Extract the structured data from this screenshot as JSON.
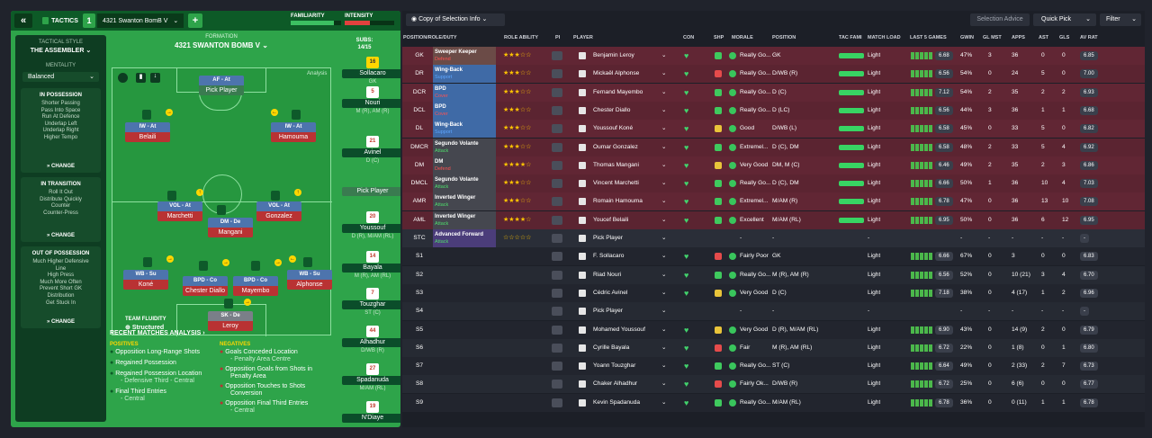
{
  "topbar": {
    "back": "«",
    "tactics": "TACTICS",
    "slot": "1",
    "tactic_name": "4321 Swanton BomB V",
    "add": "+",
    "familiarity": "FAMILIARITY",
    "intensity": "INTENSITY"
  },
  "side": {
    "style_label": "TACTICAL STYLE",
    "style": "THE ASSEMBLER",
    "mentality_label": "MENTALITY",
    "mentality": "Balanced",
    "in_possession": {
      "title": "IN POSSESSION",
      "items": [
        "Shorter Passing",
        "Pass Into Space",
        "Run At Defence",
        "Underlap Left",
        "Underlap Right",
        "Higher Tempo"
      ],
      "change": "CHANGE"
    },
    "in_transition": {
      "title": "IN TRANSITION",
      "items": [
        "Roll It Out",
        "Distribute Quickly",
        "Counter",
        "Counter-Press"
      ],
      "change": "CHANGE"
    },
    "out_possession": {
      "title": "OUT OF POSSESSION",
      "items": [
        "Much Higher Defensive",
        "Line",
        "High Press",
        "Much More Often",
        "Prevent Short GK",
        "Distribution",
        "Get Stuck In"
      ],
      "change": "CHANGE"
    }
  },
  "formation": {
    "label": "FORMATION",
    "name": "4321 SWANTON BOMB V",
    "subs_label": "SUBS:",
    "subs": "14/15",
    "analysis": "Analysis",
    "fluidity_label": "TEAM FLUIDITY",
    "fluidity": "Structured",
    "pick": "Pick Player"
  },
  "pitch_players": [
    {
      "role": "AF - At",
      "name": "Pick Player"
    },
    {
      "role": "IW - At",
      "name": "Belaili"
    },
    {
      "role": "IW - At",
      "name": "Hamouma"
    },
    {
      "role": "VOL - At",
      "name": "Marchetti"
    },
    {
      "role": "DM - De",
      "name": "Mangani"
    },
    {
      "role": "VOL - At",
      "name": "Gonzalez"
    },
    {
      "role": "WB - Su",
      "name": "Koné"
    },
    {
      "role": "BPD - Co",
      "name": "Chester Diallo"
    },
    {
      "role": "BPD - Co",
      "name": "Mayembo"
    },
    {
      "role": "WB - Su",
      "name": "Alphonse"
    },
    {
      "role": "SK - De",
      "name": "Leroy"
    }
  ],
  "subs": [
    {
      "num": "16",
      "name": "Sollacaro",
      "pos": "GK"
    },
    {
      "num": "5",
      "name": "Nouri",
      "pos": "M (R), AM (R)"
    },
    {
      "num": "21",
      "name": "Avinel",
      "pos": "D (C)"
    },
    {
      "num": "",
      "name": "Pick Player",
      "pos": ""
    },
    {
      "num": "20",
      "name": "Youssouf",
      "pos": "D (R), M/AM (RL)"
    },
    {
      "num": "14",
      "name": "Bayala",
      "pos": "M (R), AM (RL)"
    },
    {
      "num": "7",
      "name": "Touzghar",
      "pos": "ST (C)"
    },
    {
      "num": "44",
      "name": "Alhadhur",
      "pos": "D/WB (R)"
    },
    {
      "num": "27",
      "name": "Spadanuda",
      "pos": "M/AM (RL)"
    },
    {
      "num": "19",
      "name": "N'Diaye",
      "pos": ""
    }
  ],
  "analysis": {
    "title": "RECENT MATCHES ANALYSIS ›",
    "pos_label": "POSITIVES",
    "neg_label": "NEGATIVES",
    "positives": [
      "Opposition Long-Range Shots",
      "Regained Possession",
      "Regained Possession Location",
      "- Defensive Third - Central",
      "Final Third Entries",
      "- Central"
    ],
    "negatives": [
      "Goals Conceded Location",
      "- Penalty Area Centre",
      "Opposition Goals from Shots in",
      "Penalty Area",
      "Opposition Touches to Shots",
      "Conversion",
      "Opposition Final Third Entries",
      "- Central"
    ]
  },
  "right_top": {
    "selection": "Copy of Selection Info",
    "advice": "Selection Advice",
    "quick": "Quick Pick",
    "filter": "Filter"
  },
  "headers": [
    "POSITION/ROLE/DUTY",
    "ROLE ABILITY",
    "PI",
    "PLAYER",
    "CON",
    "SHP",
    "MORALE",
    "POSITION",
    "TAC FAMI",
    "MATCH LOAD",
    "LAST 5 GAMES",
    "GWIN",
    "GL MST",
    "APPS",
    "AST",
    "GLS",
    "AV RAT"
  ],
  "rows": [
    {
      "pos": "GK",
      "role": "Sweeper Keeper",
      "duty": "Defend",
      "stars": "★★★☆☆",
      "player": "Benjamin Leroy",
      "morale": "Really Go...",
      "position": "GK",
      "load": "Light",
      "form": "6.68",
      "gwin": "47%",
      "glmst": "3",
      "apps": "36",
      "ast": "0",
      "gls": "0",
      "rat": "6.85"
    },
    {
      "pos": "DR",
      "role": "Wing-Back",
      "duty": "Support",
      "stars": "★★★☆☆",
      "player": "Mickaël Alphonse",
      "morale": "Really Go...",
      "position": "D/WB (R)",
      "load": "Light",
      "form": "6.56",
      "gwin": "54%",
      "glmst": "0",
      "apps": "24",
      "ast": "5",
      "gls": "0",
      "rat": "7.00"
    },
    {
      "pos": "DCR",
      "role": "BPD",
      "duty": "Cover",
      "stars": "★★★☆☆",
      "player": "Fernand Mayembo",
      "morale": "Really Go...",
      "position": "D (C)",
      "load": "Light",
      "form": "7.12",
      "gwin": "54%",
      "glmst": "2",
      "apps": "35",
      "ast": "2",
      "gls": "2",
      "rat": "6.93"
    },
    {
      "pos": "DCL",
      "role": "BPD",
      "duty": "Cover",
      "stars": "★★★☆☆",
      "player": "Chester Diallo",
      "morale": "Really Go...",
      "position": "D (LC)",
      "load": "Light",
      "form": "6.56",
      "gwin": "44%",
      "glmst": "3",
      "apps": "36",
      "ast": "1",
      "gls": "1",
      "rat": "6.68"
    },
    {
      "pos": "DL",
      "role": "Wing-Back",
      "duty": "Support",
      "stars": "★★★☆☆",
      "player": "Youssouf Koné",
      "morale": "Good",
      "position": "D/WB (L)",
      "load": "Light",
      "form": "6.58",
      "gwin": "45%",
      "glmst": "0",
      "apps": "33",
      "ast": "5",
      "gls": "0",
      "rat": "6.82"
    },
    {
      "pos": "DMCR",
      "role": "Segundo Volante",
      "duty": "Attack",
      "stars": "★★★☆☆",
      "player": "Oumar Gonzalez",
      "morale": "Extremel...",
      "position": "D (C), DM",
      "load": "Light",
      "form": "6.58",
      "gwin": "48%",
      "glmst": "2",
      "apps": "33",
      "ast": "5",
      "gls": "4",
      "rat": "6.92"
    },
    {
      "pos": "DM",
      "role": "DM",
      "duty": "Defend",
      "stars": "★★★★☆",
      "player": "Thomas Mangani",
      "morale": "Very Good",
      "position": "DM, M (C)",
      "load": "Light",
      "form": "6.46",
      "gwin": "49%",
      "glmst": "2",
      "apps": "35",
      "ast": "2",
      "gls": "3",
      "rat": "6.86"
    },
    {
      "pos": "DMCL",
      "role": "Segundo Volante",
      "duty": "Attack",
      "stars": "★★★☆☆",
      "player": "Vincent Marchetti",
      "morale": "Really Go...",
      "position": "D (C), DM",
      "load": "Light",
      "form": "6.66",
      "gwin": "50%",
      "glmst": "1",
      "apps": "36",
      "ast": "10",
      "gls": "4",
      "rat": "7.03"
    },
    {
      "pos": "AMR",
      "role": "Inverted Winger",
      "duty": "Attack",
      "stars": "★★★☆☆",
      "player": "Romain Hamouma",
      "morale": "Extremel...",
      "position": "M/AM (R)",
      "load": "Light",
      "form": "6.78",
      "gwin": "47%",
      "glmst": "0",
      "apps": "36",
      "ast": "13",
      "gls": "10",
      "rat": "7.08"
    },
    {
      "pos": "AML",
      "role": "Inverted Winger",
      "duty": "Attack",
      "stars": "★★★★☆",
      "player": "Youcef Belaili",
      "morale": "Excellent",
      "position": "M/AM (RL)",
      "load": "Light",
      "form": "6.95",
      "gwin": "50%",
      "glmst": "0",
      "apps": "36",
      "ast": "6",
      "gls": "12",
      "rat": "6.95"
    },
    {
      "pos": "STC",
      "role": "Advanced Forward",
      "duty": "Attack",
      "stars": "☆☆☆☆☆",
      "player": "Pick Player",
      "morale": "-",
      "position": "-",
      "load": "-",
      "form": "",
      "gwin": "-",
      "glmst": "-",
      "apps": "-",
      "ast": "-",
      "gls": "-",
      "rat": "-"
    },
    {
      "pos": "S1",
      "role": "",
      "duty": "",
      "stars": "",
      "player": "F. Sollacaro",
      "morale": "Fairly Poor",
      "position": "GK",
      "load": "Light",
      "form": "6.66",
      "gwin": "67%",
      "glmst": "0",
      "apps": "3",
      "ast": "0",
      "gls": "0",
      "rat": "6.83"
    },
    {
      "pos": "S2",
      "role": "",
      "duty": "",
      "stars": "",
      "player": "Riad Nouri",
      "morale": "Really Go...",
      "position": "M (R), AM (R)",
      "load": "Light",
      "form": "6.56",
      "gwin": "52%",
      "glmst": "0",
      "apps": "10 (21)",
      "ast": "3",
      "gls": "4",
      "rat": "6.70"
    },
    {
      "pos": "S3",
      "role": "",
      "duty": "",
      "stars": "",
      "player": "Cédric Avinel",
      "morale": "Very Good",
      "position": "D (C)",
      "load": "Light",
      "form": "7.18",
      "gwin": "38%",
      "glmst": "0",
      "apps": "4 (17)",
      "ast": "1",
      "gls": "2",
      "rat": "6.96"
    },
    {
      "pos": "S4",
      "role": "",
      "duty": "",
      "stars": "",
      "player": "Pick Player",
      "morale": "-",
      "position": "-",
      "load": "-",
      "form": "",
      "gwin": "-",
      "glmst": "-",
      "apps": "-",
      "ast": "-",
      "gls": "-",
      "rat": "-"
    },
    {
      "pos": "S5",
      "role": "",
      "duty": "",
      "stars": "",
      "player": "Mohamed Youssouf",
      "morale": "Very Good",
      "position": "D (R), M/AM (RL)",
      "load": "Light",
      "form": "6.90",
      "gwin": "43%",
      "glmst": "0",
      "apps": "14 (9)",
      "ast": "2",
      "gls": "0",
      "rat": "6.79"
    },
    {
      "pos": "S6",
      "role": "",
      "duty": "",
      "stars": "",
      "player": "Cyrille Bayala",
      "morale": "Fair",
      "position": "M (R), AM (RL)",
      "load": "Light",
      "form": "6.72",
      "gwin": "22%",
      "glmst": "0",
      "apps": "1 (8)",
      "ast": "0",
      "gls": "1",
      "rat": "6.80"
    },
    {
      "pos": "S7",
      "role": "",
      "duty": "",
      "stars": "",
      "player": "Yoann Touzghar",
      "morale": "Really Go...",
      "position": "ST (C)",
      "load": "Light",
      "form": "6.64",
      "gwin": "49%",
      "glmst": "0",
      "apps": "2 (33)",
      "ast": "2",
      "gls": "7",
      "rat": "6.73"
    },
    {
      "pos": "S8",
      "role": "",
      "duty": "",
      "stars": "",
      "player": "Chaker Alhadhur",
      "morale": "Fairly Ok...",
      "position": "D/WB (R)",
      "load": "Light",
      "form": "6.72",
      "gwin": "25%",
      "glmst": "0",
      "apps": "6 (6)",
      "ast": "0",
      "gls": "0",
      "rat": "6.77"
    },
    {
      "pos": "S9",
      "role": "",
      "duty": "",
      "stars": "",
      "player": "Kevin Spadanuda",
      "morale": "Really Go...",
      "position": "M/AM (RL)",
      "load": "Light",
      "form": "6.78",
      "gwin": "36%",
      "glmst": "0",
      "apps": "0 (11)",
      "ast": "1",
      "gls": "1",
      "rat": "6.78"
    }
  ]
}
